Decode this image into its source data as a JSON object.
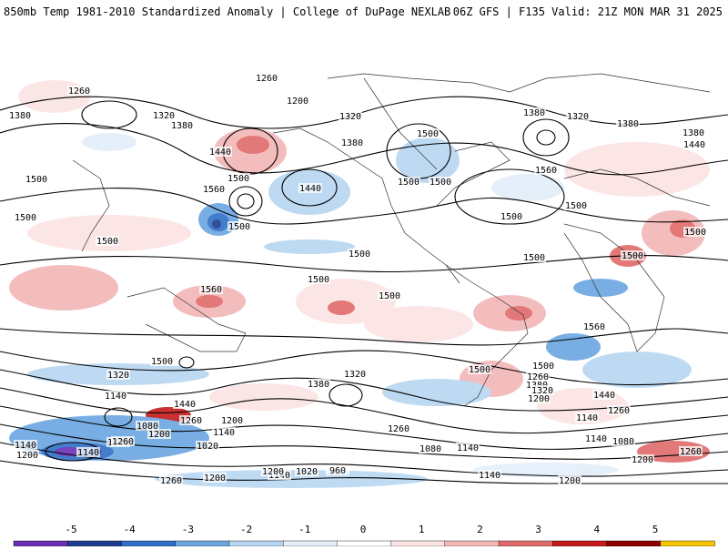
{
  "title": {
    "left": "850mb Temp 1981-2010 Standardized Anomaly | College of DuPage NEXLAB",
    "right": "06Z GFS | F135 Valid: 21Z MON MAR 31 2025"
  },
  "colors": {
    "scale": [
      "#6a2fb4",
      "#1f3b8f",
      "#2f6fc7",
      "#6aa6e0",
      "#b8d6f2",
      "#e3eef9",
      "#ffffff",
      "#fbe3e3",
      "#f3b6b6",
      "#e06a6a",
      "#c41a1a",
      "#8c0000",
      "#f5c400"
    ]
  },
  "colorbar": {
    "ticks": [
      "-5",
      "-4",
      "-3",
      "-2",
      "-1",
      "0",
      "1",
      "2",
      "3",
      "4",
      "5"
    ]
  },
  "contour_labels": [
    "1260",
    "1260",
    "1200",
    "1380",
    "1320",
    "1380",
    "1440",
    "1380",
    "1320",
    "1560",
    "1500",
    "1440",
    "1500",
    "1380",
    "1320",
    "1380",
    "1380",
    "1440",
    "1500",
    "1500",
    "1500",
    "1500",
    "1500",
    "1560",
    "1500",
    "1500",
    "1500",
    "1500",
    "1500",
    "1500",
    "1500",
    "1500",
    "1560",
    "1500",
    "1500",
    "1560",
    "1500",
    "1500",
    "1320",
    "1380",
    "1320",
    "1440",
    "1140",
    "1260",
    "1200",
    "1140",
    "1080",
    "1260",
    "1200",
    "1080",
    "1140",
    "1260",
    "1380",
    "1320",
    "1440",
    "1200",
    "1260",
    "1140",
    "1140",
    "1080",
    "1140",
    "1200",
    "1140",
    "1260",
    "1320",
    "1020",
    "1020",
    "960",
    "1140",
    "1260",
    "1200",
    "1200",
    "1200",
    "1260",
    "1140",
    "1200"
  ]
}
